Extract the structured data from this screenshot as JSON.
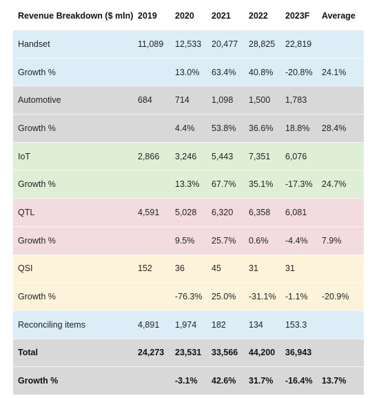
{
  "colors": {
    "blue": "#dcedf7",
    "gray": "#d8d8d8",
    "green": "#deefd6",
    "red": "#f3dcdf",
    "yellow": "#fcf3da"
  },
  "table": {
    "headers": [
      "Revenue Breakdown ($ mln)",
      "2019",
      "2020",
      "2021",
      "2022",
      "2023F",
      "Average"
    ],
    "rows": [
      {
        "color": "blue",
        "bold": false,
        "cells": [
          "Handset",
          "11,089",
          "12,533",
          "20,477",
          "28,825",
          "22,819",
          ""
        ]
      },
      {
        "color": "blue",
        "bold": false,
        "cells": [
          "Growth %",
          "",
          "13.0%",
          "63.4%",
          "40.8%",
          "-20.8%",
          "24.1%"
        ]
      },
      {
        "color": "gray",
        "bold": false,
        "cells": [
          "Automotive",
          "684",
          "714",
          "1,098",
          "1,500",
          "1,783",
          ""
        ]
      },
      {
        "color": "gray",
        "bold": false,
        "cells": [
          "Growth %",
          "",
          "4.4%",
          "53.8%",
          "36.6%",
          "18.8%",
          "28.4%"
        ]
      },
      {
        "color": "green",
        "bold": false,
        "cells": [
          "IoT",
          "2,866",
          "3,246",
          "5,443",
          "7,351",
          "6,076",
          ""
        ]
      },
      {
        "color": "green",
        "bold": false,
        "cells": [
          "Growth %",
          "",
          "13.3%",
          "67.7%",
          "35.1%",
          "-17.3%",
          "24.7%"
        ]
      },
      {
        "color": "red",
        "bold": false,
        "cells": [
          "QTL",
          "4,591",
          "5,028",
          "6,320",
          "6,358",
          "6,081",
          ""
        ]
      },
      {
        "color": "red",
        "bold": false,
        "cells": [
          "Growth %",
          "",
          "9.5%",
          "25.7%",
          "0.6%",
          "-4.4%",
          "7.9%"
        ]
      },
      {
        "color": "yellow",
        "bold": false,
        "cells": [
          "QSI",
          "152",
          "36",
          "45",
          "31",
          "31",
          ""
        ]
      },
      {
        "color": "yellow",
        "bold": false,
        "cells": [
          "Growth %",
          "",
          "-76.3%",
          "25.0%",
          "-31.1%",
          "-1.1%",
          "-20.9%"
        ]
      },
      {
        "color": "blue",
        "bold": false,
        "cells": [
          "Reconciling items",
          "4,891",
          "1,974",
          "182",
          "134",
          "153.3",
          ""
        ]
      },
      {
        "color": "gray",
        "bold": true,
        "cells": [
          "Total",
          "24,273",
          "23,531",
          "33,566",
          "44,200",
          "36,943",
          ""
        ]
      },
      {
        "color": "gray",
        "bold": true,
        "cells": [
          "Growth %",
          "",
          "-3.1%",
          "42.6%",
          "31.7%",
          "-16.4%",
          "13.7%"
        ]
      }
    ]
  }
}
